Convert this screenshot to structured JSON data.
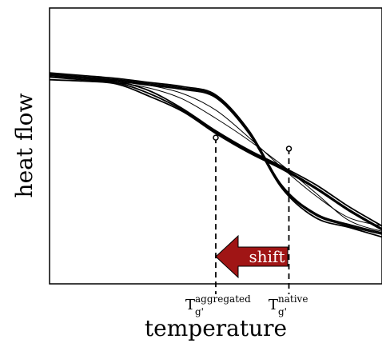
{
  "chart_data": {
    "type": "line",
    "title": "",
    "xlabel": "temperature",
    "ylabel": "heat flow",
    "ticks": false,
    "grid": false,
    "legend": "none",
    "x": [
      0,
      0.1,
      0.2,
      0.3,
      0.4,
      0.5,
      0.6,
      0.7,
      0.8,
      0.9,
      1.0
    ],
    "series_group_aggregated": {
      "color": "#000000",
      "curves": [
        [
          0.75,
          0.74,
          0.73,
          0.69,
          0.63,
          0.55,
          0.48,
          0.42,
          0.35,
          0.27,
          0.2
        ],
        [
          0.76,
          0.75,
          0.735,
          0.7,
          0.635,
          0.555,
          0.485,
          0.425,
          0.36,
          0.28,
          0.21
        ],
        [
          0.74,
          0.735,
          0.725,
          0.68,
          0.625,
          0.545,
          0.475,
          0.415,
          0.345,
          0.265,
          0.195
        ]
      ]
    },
    "series_group_intermediate": {
      "color": "#000000",
      "curves": [
        [
          0.75,
          0.74,
          0.73,
          0.71,
          0.67,
          0.6,
          0.52,
          0.43,
          0.33,
          0.23,
          0.19
        ],
        [
          0.76,
          0.75,
          0.74,
          0.72,
          0.69,
          0.63,
          0.53,
          0.42,
          0.32,
          0.24,
          0.21
        ]
      ]
    },
    "series_group_native": {
      "color": "#000000",
      "curves": [
        [
          0.76,
          0.75,
          0.74,
          0.725,
          0.71,
          0.68,
          0.55,
          0.35,
          0.25,
          0.21,
          0.18
        ],
        [
          0.755,
          0.745,
          0.735,
          0.72,
          0.705,
          0.675,
          0.545,
          0.345,
          0.24,
          0.205,
          0.17
        ],
        [
          0.765,
          0.755,
          0.745,
          0.73,
          0.715,
          0.685,
          0.555,
          0.355,
          0.255,
          0.215,
          0.185
        ]
      ]
    },
    "markers": [
      {
        "name": "Tg_aggregated",
        "x": 0.5,
        "y": 0.53
      },
      {
        "name": "Tg_native",
        "x": 0.72,
        "y": 0.49
      }
    ],
    "annotations": {
      "tg_aggregated_main": "T",
      "tg_aggregated_sub": "g'",
      "tg_aggregated_sup": "aggregated",
      "tg_native_main": "T",
      "tg_native_sub": "g'",
      "tg_native_sup": "native",
      "arrow_label": "shift",
      "arrow_color": "#a01515"
    }
  }
}
